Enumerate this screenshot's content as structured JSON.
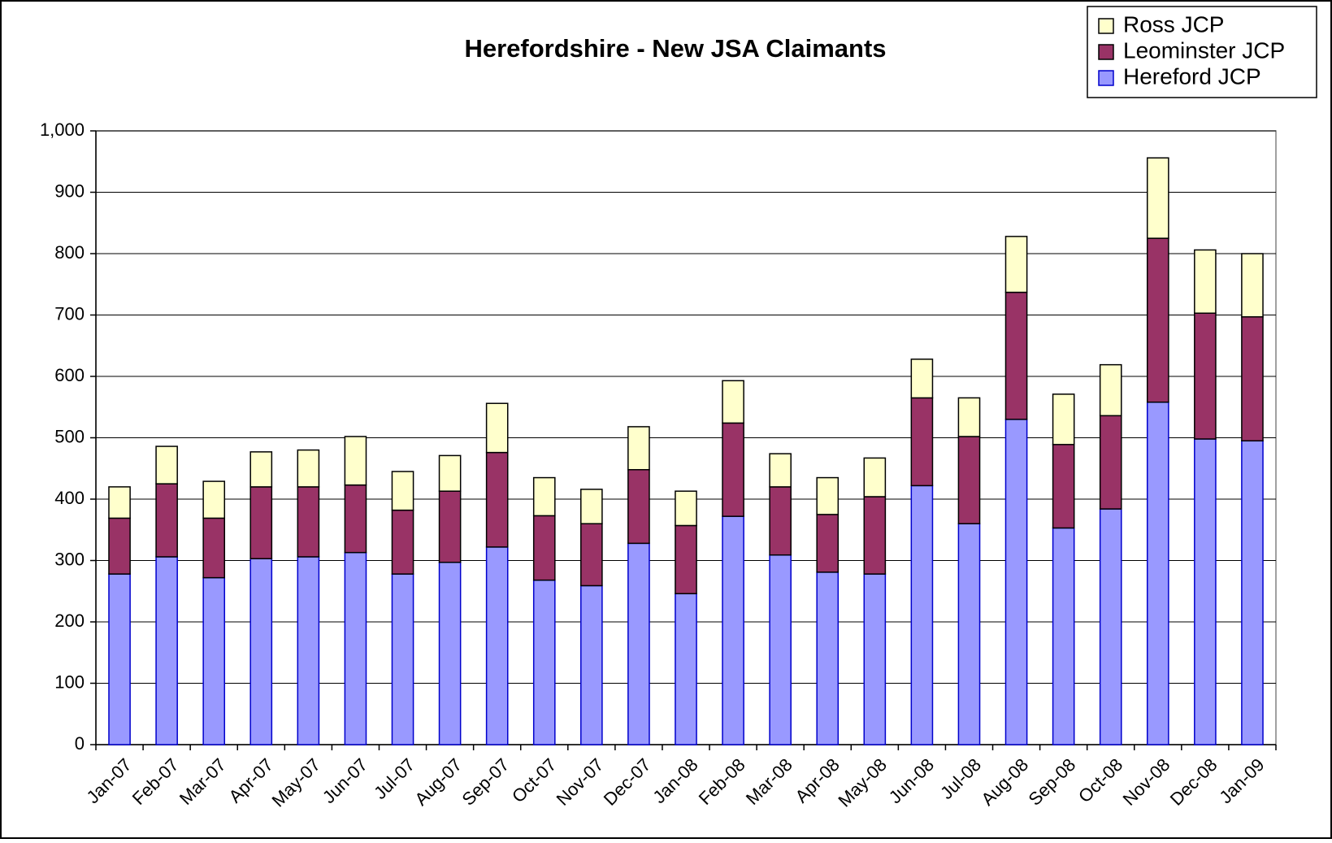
{
  "chart_data": {
    "type": "bar",
    "stacked": true,
    "title": "Herefordshire - New JSA Claimants",
    "categories": [
      "Jan-07",
      "Feb-07",
      "Mar-07",
      "Apr-07",
      "May-07",
      "Jun-07",
      "Jul-07",
      "Aug-07",
      "Sep-07",
      "Oct-07",
      "Nov-07",
      "Dec-07",
      "Jan-08",
      "Feb-08",
      "Mar-08",
      "Apr-08",
      "May-08",
      "Jun-08",
      "Jul-08",
      "Aug-08",
      "Sep-08",
      "Oct-08",
      "Nov-08",
      "Dec-08",
      "Jan-09"
    ],
    "series": [
      {
        "name": "Hereford JCP",
        "color": "#9999ff",
        "values": [
          278,
          306,
          272,
          303,
          306,
          313,
          278,
          297,
          322,
          268,
          259,
          328,
          246,
          372,
          309,
          281,
          278,
          422,
          360,
          530,
          353,
          384,
          558,
          498,
          495
        ]
      },
      {
        "name": "Leominster JCP",
        "color": "#993366",
        "values": [
          91,
          119,
          97,
          117,
          114,
          110,
          104,
          116,
          154,
          105,
          101,
          120,
          111,
          152,
          111,
          94,
          126,
          143,
          142,
          207,
          136,
          152,
          267,
          205,
          202
        ]
      },
      {
        "name": "Ross JCP",
        "color": "#ffffcc",
        "values": [
          51,
          61,
          60,
          57,
          60,
          79,
          63,
          58,
          80,
          62,
          56,
          70,
          56,
          69,
          54,
          60,
          63,
          63,
          63,
          91,
          82,
          83,
          131,
          103,
          103
        ]
      }
    ],
    "ylim": [
      0,
      1000
    ],
    "yticks": [
      0,
      100,
      200,
      300,
      400,
      500,
      600,
      700,
      800,
      900,
      {
        "value": 1000,
        "label": "1,000"
      }
    ],
    "grid": true,
    "legend": "upper right"
  }
}
